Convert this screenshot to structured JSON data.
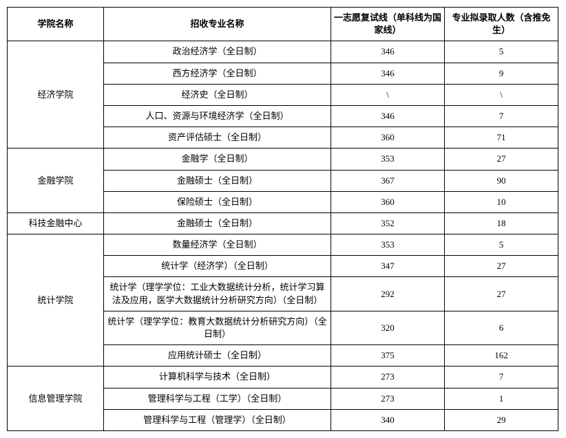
{
  "table": {
    "headers": {
      "college": "学院名称",
      "major": "招收专业名称",
      "score": "一志愿复试线（单科线为国家线）",
      "count": "专业拟录取人数（含推免生）"
    },
    "groups": [
      {
        "college": "经济学院",
        "rows": [
          {
            "major": "政治经济学（全日制）",
            "score": "346",
            "count": "5"
          },
          {
            "major": "西方经济学（全日制）",
            "score": "346",
            "count": "9"
          },
          {
            "major": "经济史（全日制）",
            "score": "\\",
            "count": "\\"
          },
          {
            "major": "人口、资源与环境经济学（全日制）",
            "score": "346",
            "count": "7"
          },
          {
            "major": "资产评估硕士（全日制）",
            "score": "360",
            "count": "71"
          }
        ]
      },
      {
        "college": "金融学院",
        "rows": [
          {
            "major": "金融学（全日制）",
            "score": "353",
            "count": "27"
          },
          {
            "major": "金融硕士（全日制）",
            "score": "367",
            "count": "90"
          },
          {
            "major": "保险硕士（全日制）",
            "score": "360",
            "count": "10"
          }
        ]
      },
      {
        "college": "科技金融中心",
        "rows": [
          {
            "major": "金融硕士（全日制）",
            "score": "352",
            "count": "18"
          }
        ]
      },
      {
        "college": "统计学院",
        "rows": [
          {
            "major": "数量经济学（全日制）",
            "score": "353",
            "count": "5"
          },
          {
            "major": "统计学（经济学）（全日制）",
            "score": "347",
            "count": "27"
          },
          {
            "major": "统计学（理学学位：工业大数据统计分析，统计学习算法及应用，医学大数据统计分析研究方向）（全日制）",
            "score": "292",
            "count": "27"
          },
          {
            "major": "统计学（理学学位：教育大数据统计分析研究方向）（全日制）",
            "score": "320",
            "count": "6"
          },
          {
            "major": "应用统计硕士（全日制）",
            "score": "375",
            "count": "162"
          }
        ]
      },
      {
        "college": "信息管理学院",
        "rows": [
          {
            "major": "计算机科学与技术（全日制）",
            "score": "273",
            "count": "7"
          },
          {
            "major": "管理科学与工程（工学）（全日制）",
            "score": "273",
            "count": "1"
          },
          {
            "major": "管理科学与工程（管理学）（全日制）",
            "score": "340",
            "count": "29"
          }
        ]
      }
    ]
  },
  "style": {
    "border_color": "#000000",
    "background_color": "#ffffff",
    "font_size_body": 13,
    "font_size_header": 13
  }
}
